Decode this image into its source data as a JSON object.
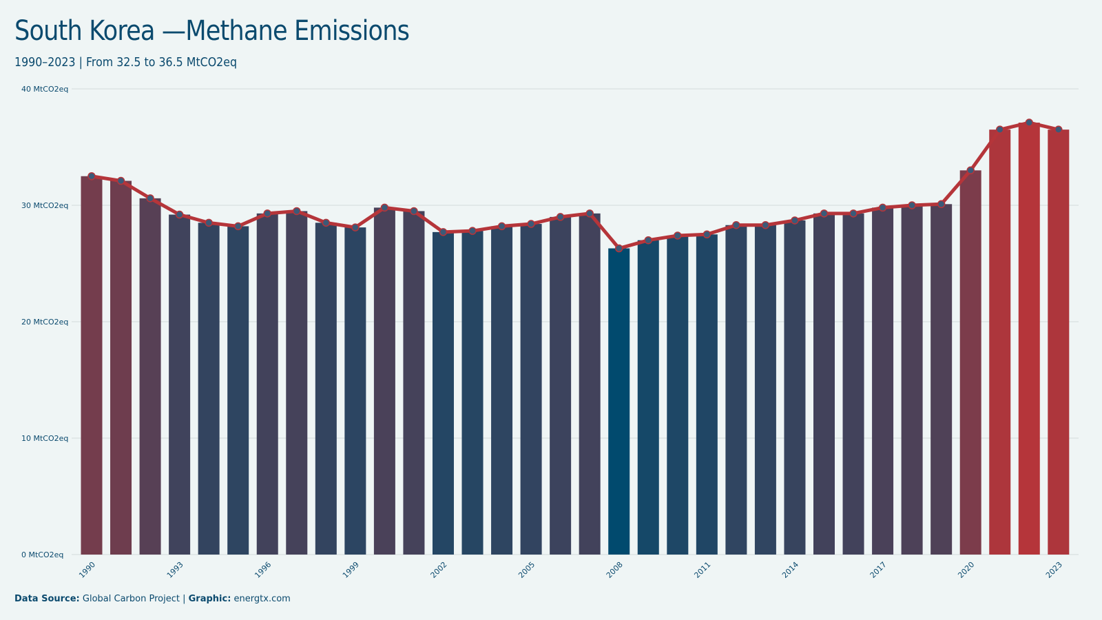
{
  "header": {
    "title": "South Korea —Methane Emissions",
    "subtitle": "1990–2023 | From 32.5 to 36.5 MtCO2eq"
  },
  "footer": {
    "source_label": "Data Source:",
    "source_value": "Global Carbon Project",
    "separator": "|",
    "graphic_label": "Graphic:",
    "graphic_value": "energtx.com"
  },
  "colors": {
    "background": "#eff5f5",
    "low": "#014a6e",
    "high": "#b5353a",
    "line": "#b5353a",
    "marker_fill": "#3b5a78",
    "text": "#0b4a6e",
    "grid": "#d3dcdc"
  },
  "chart_data": {
    "type": "bar",
    "title": "South Korea —Methane Emissions",
    "subtitle": "1990–2023 | From 32.5 to 36.5 MtCO2eq",
    "xlabel": "",
    "ylabel": "",
    "ylim": [
      0,
      40
    ],
    "y_ticks": [
      "0 MtCO2eq",
      "10 MtCO2eq",
      "20 MtCO2eq",
      "30 MtCO2eq",
      "40 MtCO2eq"
    ],
    "x_tick_labels": [
      "1990",
      "1993",
      "1996",
      "1999",
      "2002",
      "2005",
      "2008",
      "2011",
      "2014",
      "2017",
      "2020",
      "2023"
    ],
    "grid": true,
    "legend": "none",
    "overlay": "line with markers tracing bar tops",
    "categories": [
      1990,
      1991,
      1992,
      1993,
      1994,
      1995,
      1996,
      1997,
      1998,
      1999,
      2000,
      2001,
      2002,
      2003,
      2004,
      2005,
      2006,
      2007,
      2008,
      2009,
      2010,
      2011,
      2012,
      2013,
      2014,
      2015,
      2016,
      2017,
      2018,
      2019,
      2020,
      2021,
      2022,
      2023
    ],
    "values": [
      32.5,
      32.1,
      30.6,
      29.2,
      28.5,
      28.2,
      29.3,
      29.5,
      28.5,
      28.1,
      29.8,
      29.5,
      27.7,
      27.8,
      28.2,
      28.4,
      29.0,
      29.3,
      26.3,
      27.0,
      27.4,
      27.5,
      28.3,
      28.3,
      28.7,
      29.3,
      29.3,
      29.8,
      30.0,
      30.1,
      33.0,
      36.5,
      37.1,
      36.5
    ]
  }
}
